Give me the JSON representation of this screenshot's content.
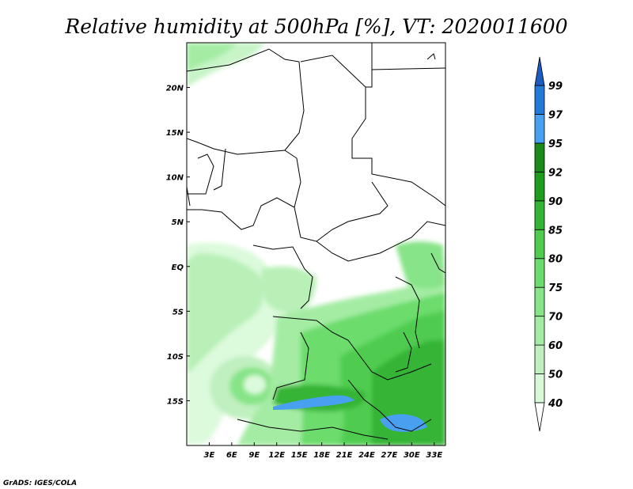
{
  "title": "Relative humidity at 500hPa [%], VT: 2020011600",
  "credit": "GrADS: IGES/COLA",
  "map": {
    "lon_range": [
      0,
      34.5
    ],
    "lat_range": [
      -20,
      25
    ],
    "lon_ticks": [
      {
        "value": 3,
        "label": "3E"
      },
      {
        "value": 6,
        "label": "6E"
      },
      {
        "value": 9,
        "label": "9E"
      },
      {
        "value": 12,
        "label": "12E"
      },
      {
        "value": 15,
        "label": "15E"
      },
      {
        "value": 18,
        "label": "18E"
      },
      {
        "value": 21,
        "label": "21E"
      },
      {
        "value": 24,
        "label": "24E"
      },
      {
        "value": 27,
        "label": "27E"
      },
      {
        "value": 30,
        "label": "30E"
      },
      {
        "value": 33,
        "label": "33E"
      }
    ],
    "lat_ticks": [
      {
        "value": 20,
        "label": "20N"
      },
      {
        "value": 15,
        "label": "15N"
      },
      {
        "value": 10,
        "label": "10N"
      },
      {
        "value": 5,
        "label": "5N"
      },
      {
        "value": 0,
        "label": "EQ"
      },
      {
        "value": -5,
        "label": "5S"
      },
      {
        "value": -10,
        "label": "10S"
      },
      {
        "value": -15,
        "label": "15S"
      }
    ]
  },
  "colorbar": {
    "levels": [
      {
        "label": "40",
        "color": "#f0fff0"
      },
      {
        "label": "50",
        "color": "#d8f8d8"
      },
      {
        "label": "60",
        "color": "#c0f0c0"
      },
      {
        "label": "70",
        "color": "#a4eca4"
      },
      {
        "label": "75",
        "color": "#88e488"
      },
      {
        "label": "80",
        "color": "#6cdc6c"
      },
      {
        "label": "85",
        "color": "#50cc50"
      },
      {
        "label": "90",
        "color": "#34b434"
      },
      {
        "label": "92",
        "color": "#1e9c1e"
      },
      {
        "label": "95",
        "color": "#1a8a1a"
      },
      {
        "label": "97",
        "color": "#4aa0f0"
      },
      {
        "label": "99",
        "color": "#2478d8"
      }
    ],
    "top_color": "#1c5cc0",
    "bottom_color": "#ffffff"
  }
}
